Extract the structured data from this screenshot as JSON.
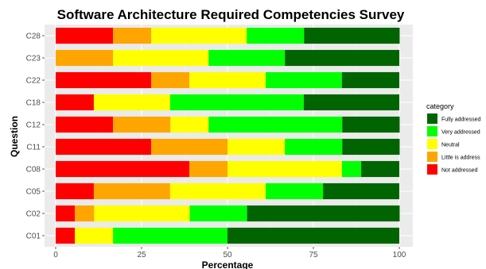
{
  "chart_data": {
    "type": "bar",
    "orientation": "horizontal",
    "stacked": true,
    "title": "Software Architecture Required Competencies Survey",
    "xlabel": "Percentage",
    "ylabel": "Question",
    "xlim": [
      0,
      100
    ],
    "x_ticks": [
      0,
      25,
      50,
      75,
      100
    ],
    "grid": true,
    "legend_position": "right",
    "legend_title": "category",
    "categories": [
      "C28",
      "C23",
      "C22",
      "C18",
      "C12",
      "C11",
      "C08",
      "C05",
      "C02",
      "C01"
    ],
    "series": [
      {
        "name": "Not addressed",
        "color": "#ff0000",
        "values": [
          16.7,
          0,
          27.8,
          11.1,
          16.7,
          27.8,
          38.9,
          11.1,
          5.6,
          5.6
        ]
      },
      {
        "name": "Little is address",
        "color": "#ffa500",
        "values": [
          11.1,
          16.7,
          11.1,
          0,
          16.7,
          22.2,
          11.1,
          22.2,
          5.6,
          0
        ]
      },
      {
        "name": "Neutral",
        "color": "#ffff00",
        "values": [
          27.8,
          27.8,
          22.2,
          22.2,
          11.1,
          16.7,
          33.3,
          27.8,
          27.8,
          11.1
        ]
      },
      {
        "name": "Very addressed",
        "color": "#00ff00",
        "values": [
          16.7,
          22.2,
          22.2,
          38.9,
          38.9,
          16.7,
          5.6,
          16.7,
          16.7,
          33.3
        ]
      },
      {
        "name": "Fully addressed",
        "color": "#006400",
        "values": [
          27.8,
          33.3,
          16.7,
          27.8,
          16.7,
          16.7,
          11.1,
          22.2,
          44.4,
          50.0
        ]
      }
    ],
    "legend_order": [
      "Fully addressed",
      "Very addressed",
      "Neutral",
      "Little is address",
      "Not addressed"
    ]
  }
}
